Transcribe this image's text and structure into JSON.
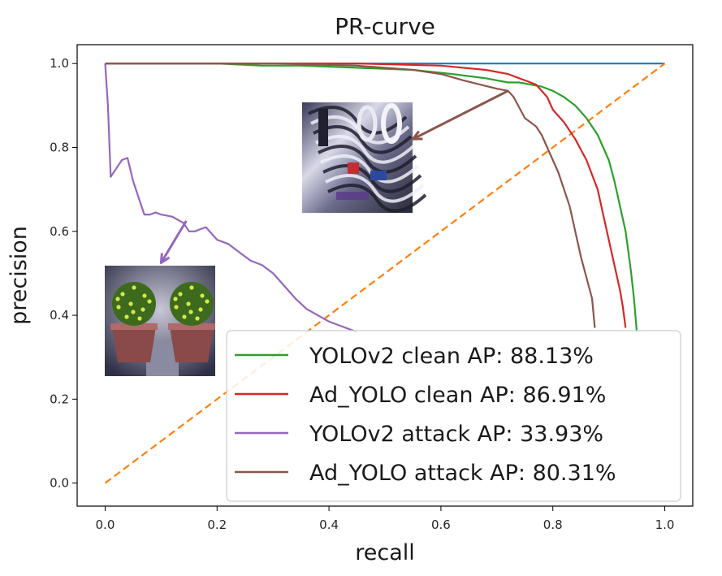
{
  "chart_data": {
    "type": "line",
    "title": "PR-curve",
    "xlabel": "recall",
    "ylabel": "precision",
    "xlim": [
      -0.05,
      1.05
    ],
    "ylim": [
      -0.055,
      1.045
    ],
    "xticks": [
      0.0,
      0.2,
      0.4,
      0.6,
      0.8,
      1.0
    ],
    "yticks": [
      0.0,
      0.2,
      0.4,
      0.6,
      0.8,
      1.0
    ],
    "xtick_labels": [
      "0.0",
      "0.2",
      "0.4",
      "0.6",
      "0.8",
      "1.0"
    ],
    "ytick_labels": [
      "0.0",
      "0.2",
      "0.4",
      "0.6",
      "0.8",
      "1.0"
    ],
    "grid": false,
    "legend_position": "lower-right",
    "series": [
      {
        "name": "",
        "color": "#1f77b4",
        "dash": "solid",
        "x": [
          0.0,
          1.0
        ],
        "y": [
          1.0,
          1.0
        ]
      },
      {
        "name": "",
        "color": "#ff7f0e",
        "dash": "dashed",
        "x": [
          0.0,
          1.0
        ],
        "y": [
          0.0,
          1.0
        ]
      },
      {
        "name": "YOLOv2 clean AP: 88.13%",
        "color": "#2ca02c",
        "dash": "solid",
        "x": [
          0.0,
          0.2,
          0.28,
          0.35,
          0.45,
          0.55,
          0.62,
          0.68,
          0.7,
          0.72,
          0.74,
          0.76,
          0.78,
          0.8,
          0.82,
          0.84,
          0.86,
          0.88,
          0.9,
          0.91,
          0.92,
          0.93,
          0.935,
          0.94,
          0.945,
          0.95
        ],
        "y": [
          1.0,
          1.0,
          0.995,
          0.995,
          0.99,
          0.985,
          0.975,
          0.965,
          0.96,
          0.955,
          0.955,
          0.95,
          0.945,
          0.935,
          0.92,
          0.9,
          0.87,
          0.83,
          0.77,
          0.72,
          0.66,
          0.6,
          0.55,
          0.5,
          0.44,
          0.36
        ]
      },
      {
        "name": "Ad_YOLO clean AP: 86.91%",
        "color": "#d62728",
        "dash": "solid",
        "x": [
          0.0,
          0.3,
          0.45,
          0.6,
          0.68,
          0.72,
          0.75,
          0.77,
          0.79,
          0.8,
          0.82,
          0.84,
          0.86,
          0.88,
          0.89,
          0.9,
          0.91,
          0.92,
          0.925,
          0.93
        ],
        "y": [
          1.0,
          1.0,
          1.0,
          0.995,
          0.985,
          0.975,
          0.96,
          0.95,
          0.92,
          0.89,
          0.86,
          0.82,
          0.77,
          0.7,
          0.64,
          0.58,
          0.52,
          0.46,
          0.42,
          0.37
        ]
      },
      {
        "name": "YOLOv2 attack AP: 33.93%",
        "color": "#9467bd",
        "dash": "solid",
        "x": [
          0.0,
          0.005,
          0.01,
          0.02,
          0.03,
          0.04,
          0.05,
          0.06,
          0.07,
          0.08,
          0.09,
          0.1,
          0.12,
          0.14,
          0.15,
          0.16,
          0.18,
          0.2,
          0.22,
          0.24,
          0.26,
          0.28,
          0.3,
          0.32,
          0.34,
          0.36,
          0.38,
          0.4,
          0.42,
          0.45
        ],
        "y": [
          1.0,
          0.9,
          0.73,
          0.75,
          0.77,
          0.775,
          0.72,
          0.68,
          0.64,
          0.64,
          0.645,
          0.64,
          0.635,
          0.62,
          0.6,
          0.6,
          0.61,
          0.58,
          0.57,
          0.55,
          0.53,
          0.52,
          0.5,
          0.47,
          0.44,
          0.415,
          0.4,
          0.385,
          0.375,
          0.36
        ]
      },
      {
        "name": "Ad_YOLO attack AP: 80.31%",
        "color": "#8c564b",
        "dash": "solid",
        "x": [
          0.0,
          0.3,
          0.45,
          0.55,
          0.6,
          0.64,
          0.67,
          0.7,
          0.72,
          0.73,
          0.74,
          0.75,
          0.76,
          0.77,
          0.78,
          0.79,
          0.8,
          0.81,
          0.82,
          0.83,
          0.84,
          0.85,
          0.86,
          0.87,
          0.875
        ],
        "y": [
          1.0,
          1.0,
          0.995,
          0.985,
          0.975,
          0.96,
          0.95,
          0.94,
          0.935,
          0.92,
          0.895,
          0.87,
          0.86,
          0.85,
          0.83,
          0.8,
          0.77,
          0.74,
          0.7,
          0.66,
          0.6,
          0.54,
          0.49,
          0.44,
          0.37
        ]
      }
    ],
    "annotations": [
      {
        "type": "image-inset",
        "name": "clean-plant-image",
        "arrow_color": "#9467bd",
        "arrow_from": [
          0.145,
          0.625
        ],
        "arrow_to": [
          0.1,
          0.525
        ]
      },
      {
        "type": "image-inset",
        "name": "adversarial-patch-image",
        "arrow_color": "#8c564b",
        "arrow_from": [
          0.72,
          0.935
        ],
        "arrow_to": [
          0.55,
          0.82
        ]
      }
    ]
  }
}
